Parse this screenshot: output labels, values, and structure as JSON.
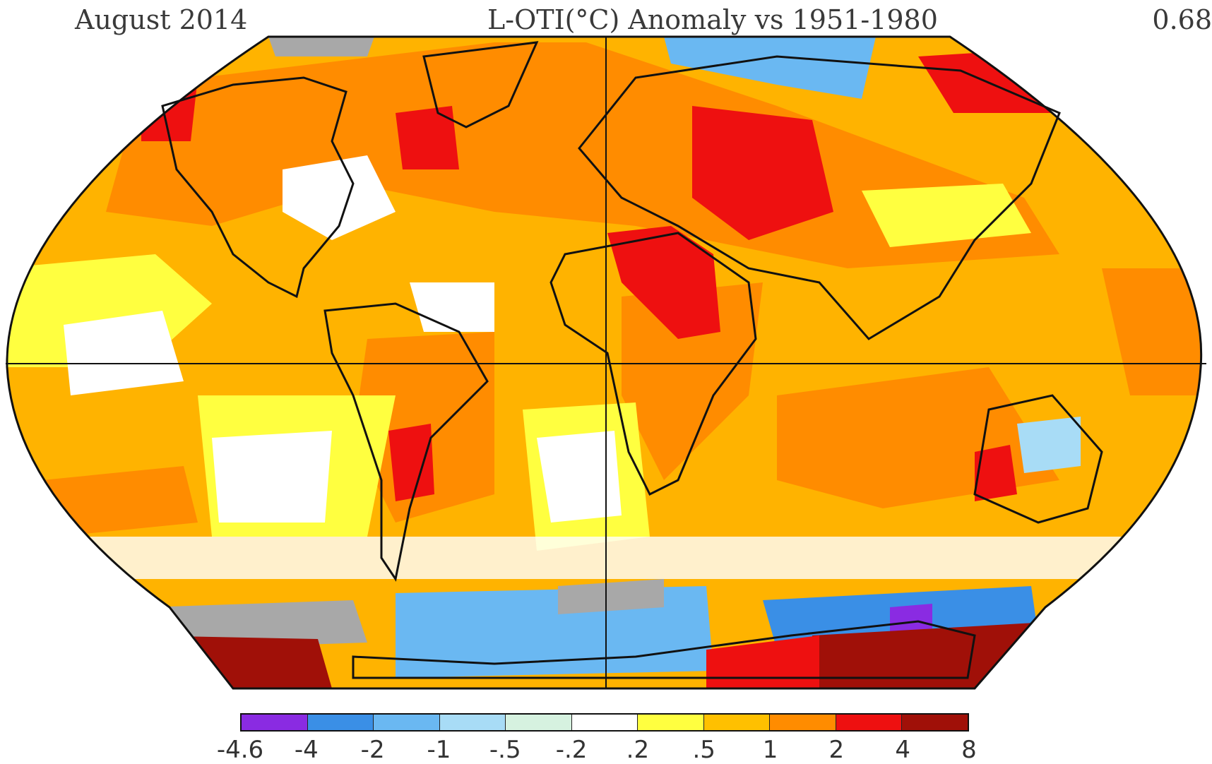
{
  "header": {
    "period": "August 2014",
    "title": "L-OTI(°C) Anomaly vs 1951-1980",
    "global_value": "0.68"
  },
  "legend": {
    "ticks": [
      "-4.6",
      "-4",
      "-2",
      "-1",
      "-.5",
      "-.2",
      ".2",
      ".5",
      "1",
      "2",
      "4",
      "8"
    ],
    "colors": [
      "#8a2be2",
      "#3a8fe6",
      "#6ab8f2",
      "#a8dcf6",
      "#d6f2e0",
      "#ffffff",
      "#ffff40",
      "#ffc000",
      "#ff8c00",
      "#ee1010",
      "#a01008"
    ]
  },
  "map": {
    "projection": "Robinson",
    "background_color": "#ffb300"
  }
}
